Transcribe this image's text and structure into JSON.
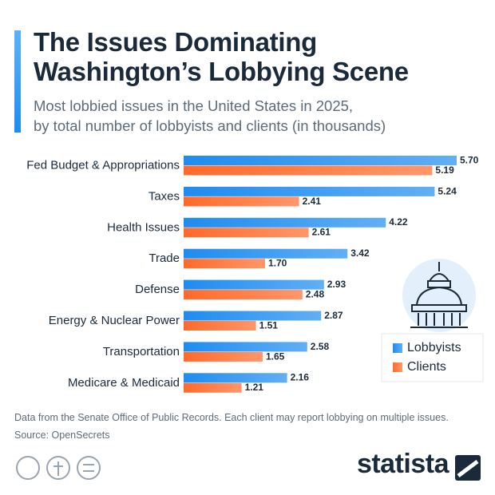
{
  "chart_data": {
    "type": "hbar",
    "title": "The Issues Dominating\nWashington’s Lobbying Scene",
    "subtitle": "Most lobbied issues in the United States in 2025,\nby total number of lobbyists and clients (in thousands)",
    "categories": [
      "Fed Budget & Appropriations",
      "Taxes",
      "Health Issues",
      "Trade",
      "Defense",
      "Energy & Nuclear Power",
      "Transportation",
      "Medicare & Medicaid"
    ],
    "series": [
      {
        "name": "Lobbyists",
        "color": "#1e8cf0",
        "values": [
          5.7,
          5.24,
          4.22,
          3.42,
          2.93,
          2.87,
          2.58,
          2.16
        ],
        "value_labels": [
          "5.70",
          "5.24",
          "4.22",
          "3.42",
          "2.93",
          "2.87",
          "2.58",
          "2.16"
        ]
      },
      {
        "name": "Clients",
        "color": "#ff6a2b",
        "values": [
          5.19,
          2.41,
          2.61,
          1.7,
          2.48,
          1.51,
          1.65,
          1.21
        ],
        "value_labels": [
          "5.19",
          "2.41",
          "2.61",
          "1.70",
          "2.48",
          "1.51",
          "1.65",
          "1.21"
        ]
      }
    ],
    "legend": "bottom-right",
    "note": "Data from the Senate Office of Public Records. Each client may report lobbying on multiple issues.",
    "source": "Source: OpenSecrets",
    "logo": "statista"
  }
}
